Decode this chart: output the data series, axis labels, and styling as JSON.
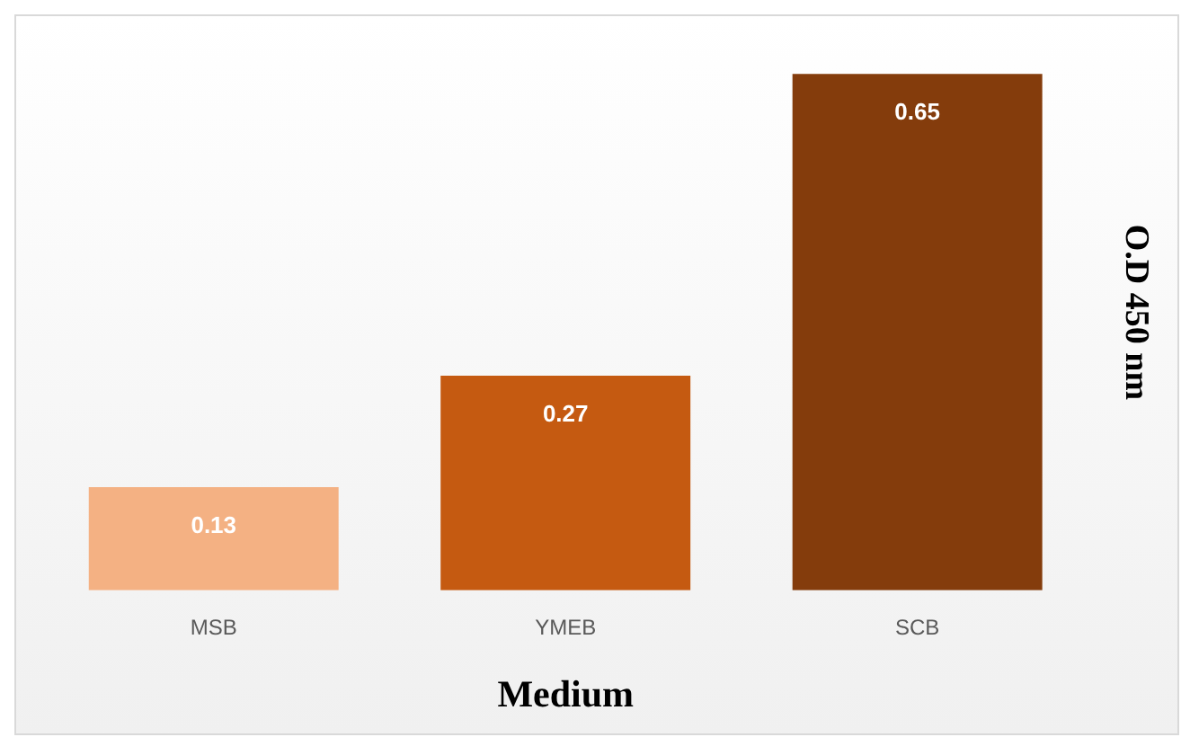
{
  "chart_data": {
    "type": "bar",
    "xlabel": "Medium",
    "ylabel": "O.D 450 nm",
    "categories": [
      "MSB",
      "YMEB",
      "SCB"
    ],
    "values": [
      0.13,
      0.27,
      0.65
    ],
    "colors": [
      "#f4b183",
      "#c55a11",
      "#843c0c"
    ],
    "data_labels": true,
    "grid": false,
    "legend": false
  }
}
